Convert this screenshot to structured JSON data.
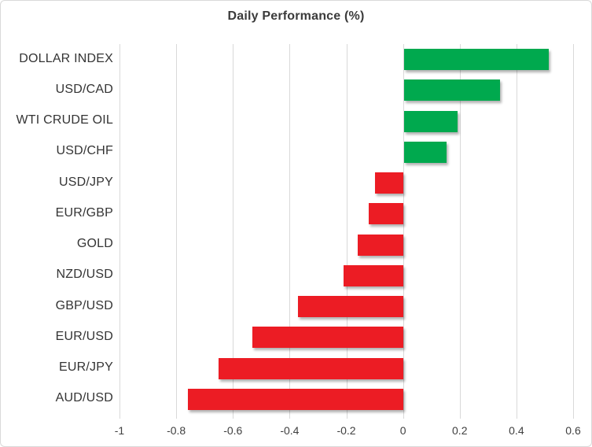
{
  "title": "Daily Performance (%)",
  "colors": {
    "positive": "#00a94e",
    "negative": "#ec1c24",
    "gridline": "#d9d9d9",
    "title_text": "#3b3b3b",
    "category_text": "#343434",
    "tick_text": "#404040",
    "border": "#d9d9d9",
    "background": "#ffffff"
  },
  "chart_data": {
    "type": "bar",
    "orientation": "horizontal",
    "title": "Daily Performance (%)",
    "categories": [
      "DOLLAR INDEX",
      "USD/CAD",
      "WTI CRUDE OIL",
      "USD/CHF",
      "USD/JPY",
      "EUR/GBP",
      "GOLD",
      "NZD/USD",
      "GBP/USD",
      "EUR/USD",
      "EUR/JPY",
      "AUD/USD"
    ],
    "values": [
      0.51,
      0.34,
      0.19,
      0.15,
      -0.1,
      -0.12,
      -0.16,
      -0.21,
      -0.37,
      -0.53,
      -0.65,
      -0.76
    ],
    "xlabel": "",
    "ylabel": "",
    "xlim": [
      -1,
      0.6
    ],
    "xticks": [
      -1,
      -0.8,
      -0.6,
      -0.4,
      -0.2,
      0,
      0.2,
      0.4,
      0.6
    ],
    "xtick_labels": [
      "-1",
      "-0.8",
      "-0.6",
      "-0.4",
      "-0.2",
      "0",
      "0.2",
      "0.4",
      "0.6"
    ],
    "grid": true,
    "legend": false,
    "positive_color": "#00a94e",
    "negative_color": "#ec1c24"
  }
}
